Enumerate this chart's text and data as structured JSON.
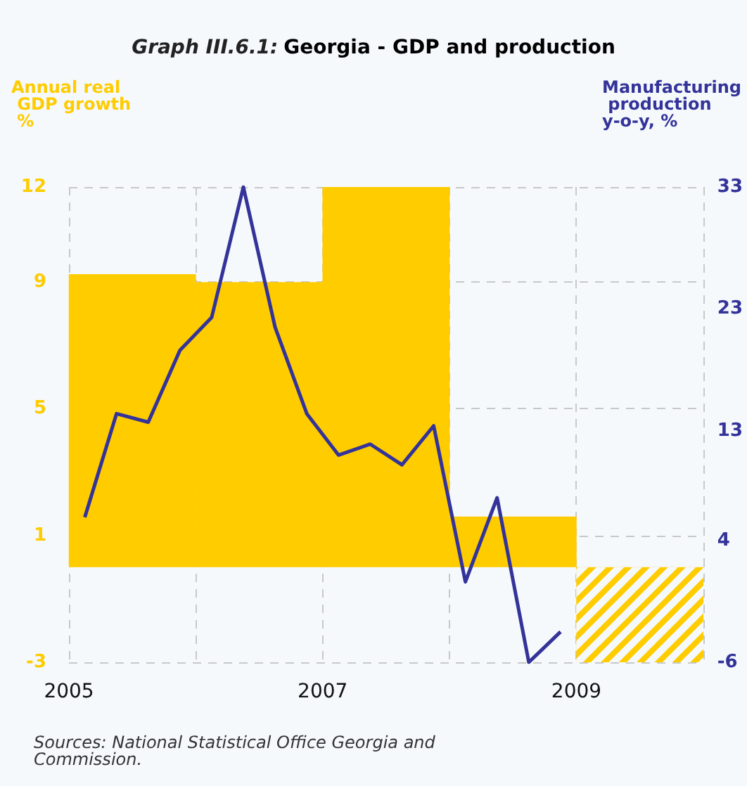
{
  "chart_data": {
    "type": "bar",
    "title": "Georgia - GDP and production",
    "subtitle": "Graph III.6.1:",
    "ylabel": "Annual real GDP growth %",
    "y2label": "Manufacturing production y-o-y, %",
    "annotations": [
      "Sources: National Statistical Office Georgia and Commission."
    ],
    "xlim": [
      2005,
      2010
    ],
    "xticks": [
      2005,
      {
        "value": 2006,
        "label": null
      },
      2007,
      {
        "value": 2008,
        "label": null
      },
      2009,
      {
        "value": 2010,
        "label": null
      }
    ],
    "ylim": [
      -3,
      12
    ],
    "yticks": [
      -3,
      1,
      5,
      9,
      12
    ],
    "y2lim": [
      -6,
      33
    ],
    "y2ticks": [
      -6,
      4,
      13,
      23,
      33
    ],
    "grid": true,
    "series": [
      {
        "color": "#ffcc00",
        "x": [
          2005.5,
          2006.5,
          2007.5,
          2008.5,
          2009.5
        ],
        "values": [
          9.25,
          9.0,
          12.0,
          1.6,
          -3.0
        ]
      },
      {
        "type": "line",
        "axis": "y2",
        "color": "#333399",
        "x": [
          2005.125,
          2005.375,
          2005.625,
          2005.875,
          2006.125,
          2006.375,
          2006.625,
          2006.875,
          2007.125,
          2007.375,
          2007.625,
          2007.875,
          2008.125,
          2008.375,
          2008.625,
          2008.875
        ],
        "values": [
          5.9,
          14.4,
          13.7,
          19.6,
          22.3,
          33.0,
          21.5,
          14.4,
          11.0,
          11.9,
          10.2,
          13.4,
          0.6,
          7.5,
          -6.0,
          -3.5
        ]
      }
    ]
  }
}
